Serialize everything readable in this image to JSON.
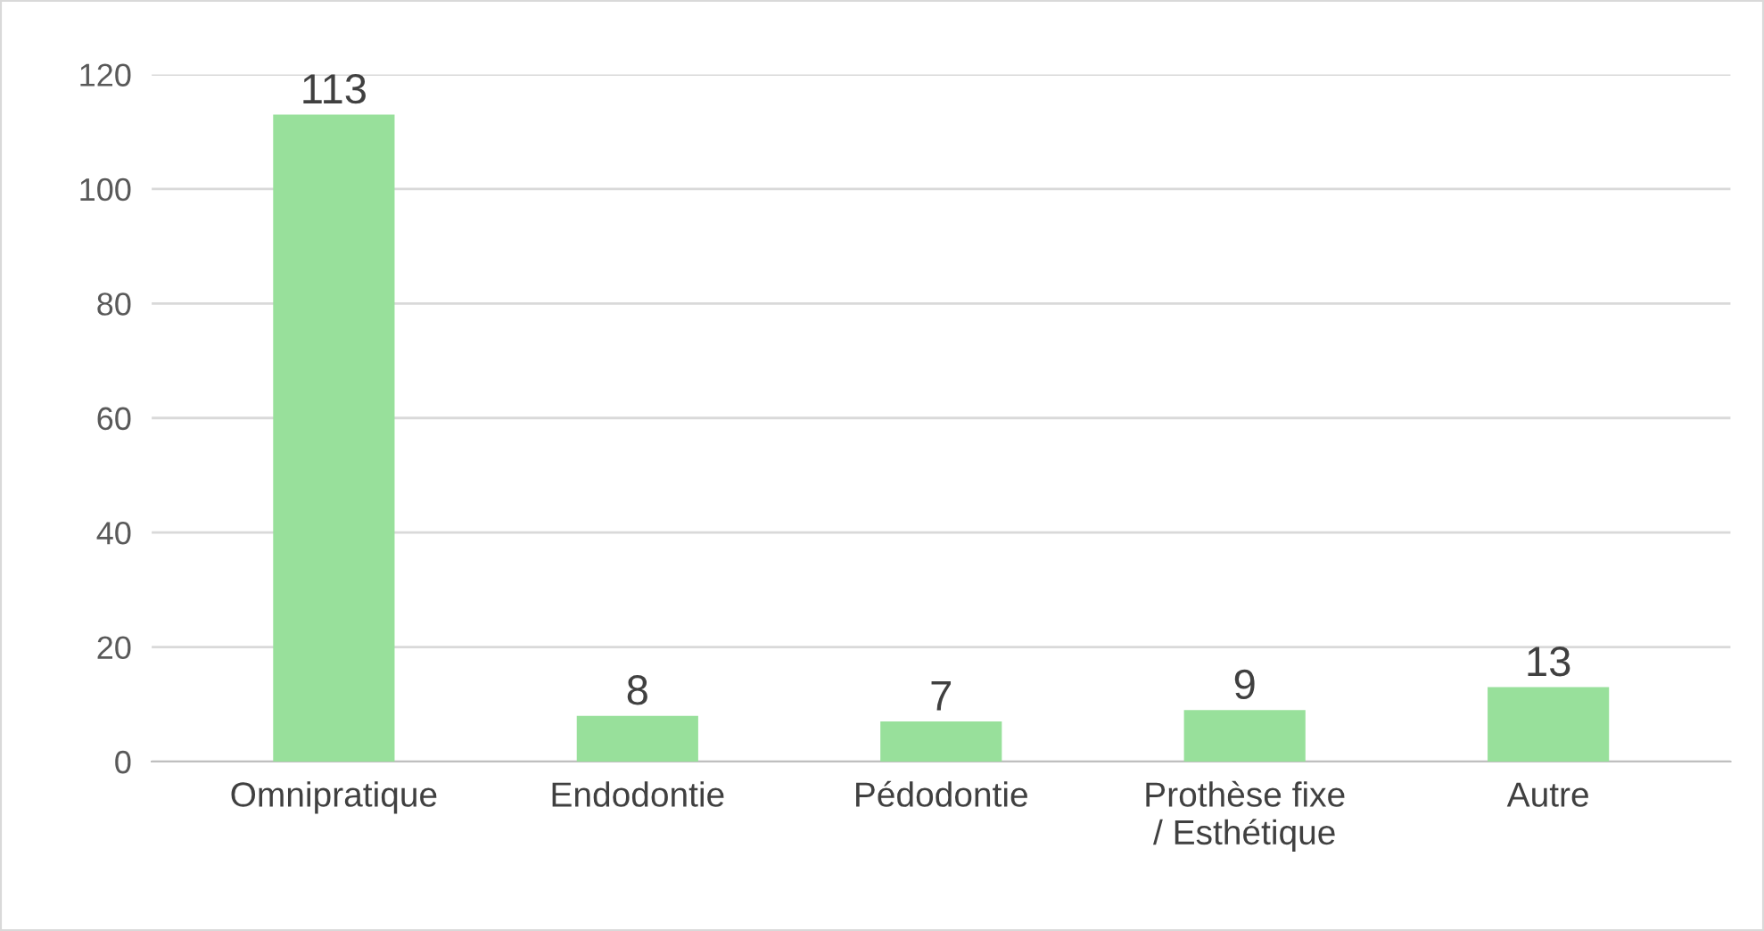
{
  "chart_data": {
    "type": "bar",
    "categories": [
      "Omnipratique",
      "Endodontie",
      "Pédodontie",
      "Prothèse fixe\n/ Esthétique",
      "Autre"
    ],
    "values": [
      113,
      8,
      7,
      9,
      13
    ],
    "color": "#98e09b",
    "ylim": [
      0,
      120
    ],
    "yticks": [
      0,
      20,
      40,
      60,
      80,
      100,
      120
    ],
    "grid": "y",
    "data_labels": true,
    "legend": false
  }
}
